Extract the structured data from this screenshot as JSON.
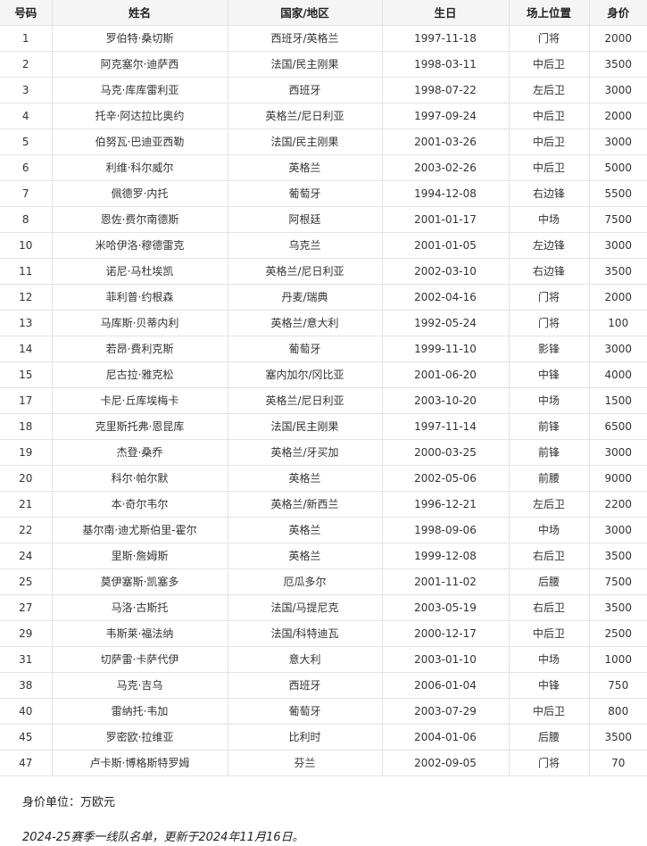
{
  "table": {
    "headers": [
      "号码",
      "姓名",
      "国家/地区",
      "生日",
      "场上位置",
      "身价"
    ],
    "rows": [
      [
        "1",
        "罗伯特·桑切斯",
        "西班牙/英格兰",
        "1997-11-18",
        "门将",
        "2000"
      ],
      [
        "2",
        "阿克塞尔·迪萨西",
        "法国/民主刚果",
        "1998-03-11",
        "中后卫",
        "3500"
      ],
      [
        "3",
        "马克·库库雷利亚",
        "西班牙",
        "1998-07-22",
        "左后卫",
        "3000"
      ],
      [
        "4",
        "托辛·阿达拉比奥约",
        "英格兰/尼日利亚",
        "1997-09-24",
        "中后卫",
        "2000"
      ],
      [
        "5",
        "伯努瓦·巴迪亚西勒",
        "法国/民主刚果",
        "2001-03-26",
        "中后卫",
        "3000"
      ],
      [
        "6",
        "利维·科尔威尔",
        "英格兰",
        "2003-02-26",
        "中后卫",
        "5000"
      ],
      [
        "7",
        "佩德罗·内托",
        "葡萄牙",
        "1994-12-08",
        "右边锋",
        "5500"
      ],
      [
        "8",
        "恩佐·费尔南德斯",
        "阿根廷",
        "2001-01-17",
        "中场",
        "7500"
      ],
      [
        "10",
        "米哈伊洛·穆德雷克",
        "乌克兰",
        "2001-01-05",
        "左边锋",
        "3000"
      ],
      [
        "11",
        "诺尼·马杜埃凯",
        "英格兰/尼日利亚",
        "2002-03-10",
        "右边锋",
        "3500"
      ],
      [
        "12",
        "菲利普·约根森",
        "丹麦/瑞典",
        "2002-04-16",
        "门将",
        "2000"
      ],
      [
        "13",
        "马库斯·贝蒂内利",
        "英格兰/意大利",
        "1992-05-24",
        "门将",
        "100"
      ],
      [
        "14",
        "若昂·费利克斯",
        "葡萄牙",
        "1999-11-10",
        "影锋",
        "3000"
      ],
      [
        "15",
        "尼古拉·雅克松",
        "塞内加尔/冈比亚",
        "2001-06-20",
        "中锋",
        "4000"
      ],
      [
        "17",
        "卡尼·丘库埃梅卡",
        "英格兰/尼日利亚",
        "2003-10-20",
        "中场",
        "1500"
      ],
      [
        "18",
        "克里斯托弗·恩昆库",
        "法国/民主刚果",
        "1997-11-14",
        "前锋",
        "6500"
      ],
      [
        "19",
        "杰登·桑乔",
        "英格兰/牙买加",
        "2000-03-25",
        "前锋",
        "3000"
      ],
      [
        "20",
        "科尔·帕尔默",
        "英格兰",
        "2002-05-06",
        "前腰",
        "9000"
      ],
      [
        "21",
        "本·奇尔韦尔",
        "英格兰/新西兰",
        "1996-12-21",
        "左后卫",
        "2200"
      ],
      [
        "22",
        "基尔南·迪尤斯伯里-霍尔",
        "英格兰",
        "1998-09-06",
        "中场",
        "3000"
      ],
      [
        "24",
        "里斯·詹姆斯",
        "英格兰",
        "1999-12-08",
        "右后卫",
        "3500"
      ],
      [
        "25",
        "莫伊塞斯·凯塞多",
        "厄瓜多尔",
        "2001-11-02",
        "后腰",
        "7500"
      ],
      [
        "27",
        "马洛·古斯托",
        "法国/马提尼克",
        "2003-05-19",
        "右后卫",
        "3500"
      ],
      [
        "29",
        "韦斯莱·福法纳",
        "法国/科特迪瓦",
        "2000-12-17",
        "中后卫",
        "2500"
      ],
      [
        "31",
        "切萨雷·卡萨代伊",
        "意大利",
        "2003-01-10",
        "中场",
        "1000"
      ],
      [
        "38",
        "马克·吉乌",
        "西班牙",
        "2006-01-04",
        "中锋",
        "750"
      ],
      [
        "40",
        "雷纳托·韦加",
        "葡萄牙",
        "2003-07-29",
        "中后卫",
        "800"
      ],
      [
        "45",
        "罗密欧·拉维亚",
        "比利时",
        "2004-01-06",
        "后腰",
        "3500"
      ],
      [
        "47",
        "卢卡斯·博格斯特罗姆",
        "芬兰",
        "2002-09-05",
        "门将",
        "70"
      ]
    ]
  },
  "notes": {
    "unit": "身价单位：万欧元",
    "updated": "2024-25赛季一线队名单，更新于2024年11月16日。"
  }
}
